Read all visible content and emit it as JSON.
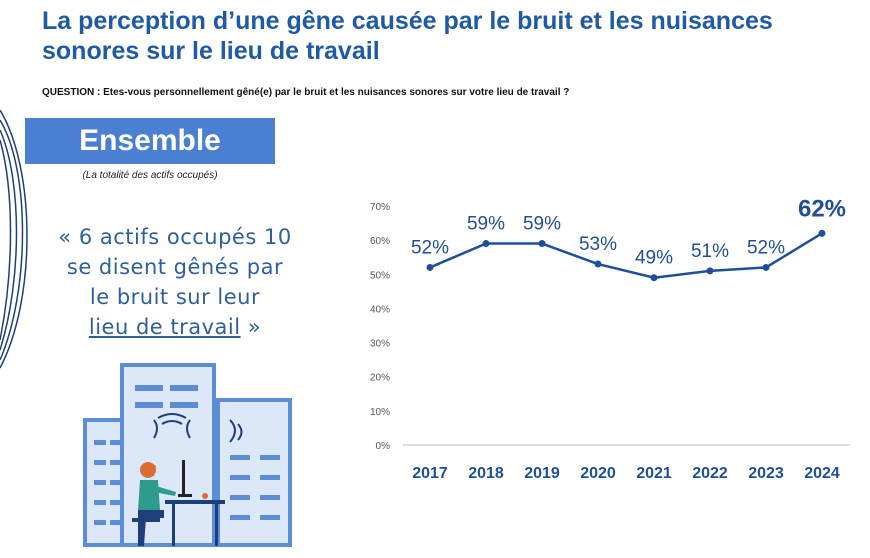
{
  "page": {
    "title": "La perception d’une gêne causée par le bruit et les nuisances sonores sur le lieu de travail",
    "question": "QUESTION : Etes-vous personnellement gêné(e) par le bruit et les nuisances sonores sur votre lieu de travail ?"
  },
  "banner": {
    "label": "Ensemble",
    "subtitle": "(La totalité des actifs occupés)"
  },
  "quote": {
    "line1": "« 6 actifs occupés 10",
    "line2": "se disent gênés par",
    "line3": "le bruit sur leur",
    "line4_underlined": "lieu de travail",
    "line4_end": " »"
  },
  "colors": {
    "title": "#1f5aa6",
    "banner": "#4a7fd1",
    "line": "#1f4e9a",
    "illustration": "#5b8ed6"
  },
  "icons": [
    "office-building-illustration",
    "person-at-desk-illustration"
  ],
  "chart_data": {
    "type": "line",
    "categories": [
      "2017",
      "2018",
      "2019",
      "2020",
      "2021",
      "2022",
      "2023",
      "2024"
    ],
    "values": [
      52,
      59,
      59,
      53,
      49,
      51,
      52,
      62
    ],
    "data_labels": [
      "52%",
      "59%",
      "59%",
      "53%",
      "49%",
      "51%",
      "52%",
      "62%"
    ],
    "yticks": [
      "0%",
      "10%",
      "20%",
      "30%",
      "40%",
      "50%",
      "60%",
      "70%"
    ],
    "ylim": [
      0,
      70
    ],
    "grid": false
  }
}
